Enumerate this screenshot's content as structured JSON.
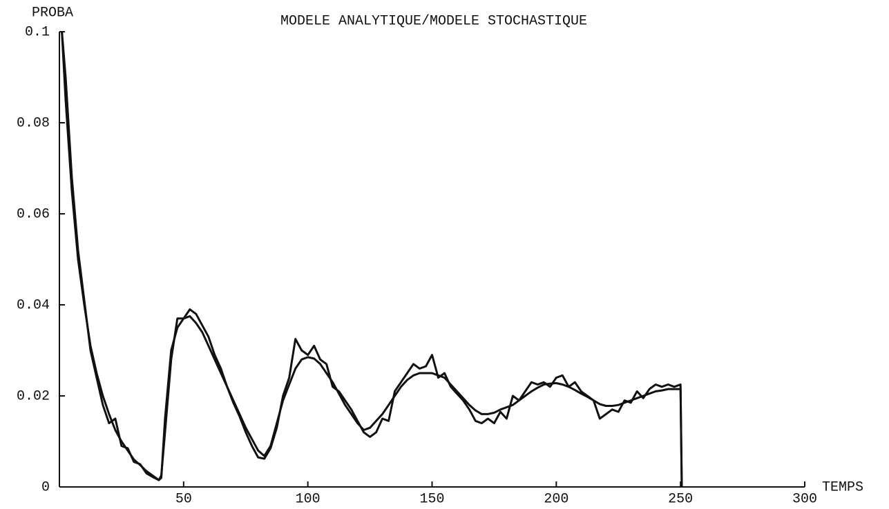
{
  "chart_data": {
    "type": "line",
    "title": "MODELE ANALYTIQUE/MODELE STOCHASTIQUE",
    "y_label": "PROBA",
    "x_label": "TEMPS",
    "xlim": [
      0,
      300
    ],
    "ylim": [
      0,
      0.1
    ],
    "xticks": [
      50,
      100,
      150,
      200,
      250,
      300
    ],
    "yticks": [
      0,
      0.02,
      0.04,
      0.06,
      0.08,
      0.1
    ],
    "x": [
      1,
      2.5,
      5,
      7.5,
      10,
      12.5,
      15,
      17.5,
      20,
      22.5,
      25,
      27.5,
      30,
      32.5,
      35,
      37.5,
      40,
      41,
      42.5,
      45,
      47.5,
      50,
      52.5,
      55,
      57.5,
      60,
      62.5,
      65,
      67.5,
      70,
      72.5,
      75,
      77.5,
      80,
      82.5,
      85,
      87.5,
      90,
      92.5,
      95,
      97.5,
      100,
      102.5,
      105,
      107.5,
      110,
      112.5,
      115,
      117.5,
      120,
      122.5,
      125,
      127.5,
      130,
      132.5,
      135,
      137.5,
      140,
      142.5,
      145,
      147.5,
      150,
      152.5,
      155,
      157.5,
      160,
      162.5,
      165,
      167.5,
      170,
      172.5,
      175,
      177.5,
      180,
      182.5,
      185,
      187.5,
      190,
      192.5,
      195,
      197.5,
      200,
      202.5,
      205,
      207.5,
      210,
      212.5,
      215,
      217.5,
      220,
      222.5,
      225,
      227.5,
      230,
      232.5,
      235,
      237.5,
      240,
      242.5,
      245,
      247.5,
      250,
      250.5
    ],
    "series": [
      {
        "color": "#111111",
        "values": [
          0.1,
          0.085,
          0.065,
          0.05,
          0.04,
          0.031,
          0.025,
          0.02,
          0.016,
          0.0125,
          0.01,
          0.008,
          0.006,
          0.0048,
          0.0035,
          0.0025,
          0.0015,
          0.002,
          0.015,
          0.03,
          0.035,
          0.037,
          0.0375,
          0.036,
          0.034,
          0.031,
          0.028,
          0.025,
          0.022,
          0.019,
          0.016,
          0.013,
          0.0105,
          0.008,
          0.0068,
          0.009,
          0.014,
          0.019,
          0.0225,
          0.026,
          0.028,
          0.0285,
          0.0282,
          0.027,
          0.025,
          0.023,
          0.0205,
          0.018,
          0.016,
          0.014,
          0.0125,
          0.013,
          0.0145,
          0.016,
          0.018,
          0.02,
          0.022,
          0.0235,
          0.0245,
          0.025,
          0.025,
          0.025,
          0.0245,
          0.024,
          0.0225,
          0.021,
          0.0195,
          0.018,
          0.0168,
          0.016,
          0.016,
          0.0163,
          0.017,
          0.0175,
          0.018,
          0.019,
          0.02,
          0.021,
          0.0218,
          0.0225,
          0.0227,
          0.0228,
          0.0225,
          0.022,
          0.0213,
          0.0205,
          0.0198,
          0.019,
          0.0182,
          0.0178,
          0.0178,
          0.018,
          0.0185,
          0.019,
          0.0195,
          0.02,
          0.0205,
          0.021,
          0.0212,
          0.0215,
          0.0215,
          0.0215,
          0
        ]
      },
      {
        "color": "#111111",
        "values": [
          0.1,
          0.09,
          0.068,
          0.052,
          0.041,
          0.03,
          0.024,
          0.018,
          0.014,
          0.015,
          0.009,
          0.0085,
          0.0055,
          0.005,
          0.003,
          0.0022,
          0.0015,
          0.0025,
          0.012,
          0.028,
          0.037,
          0.037,
          0.039,
          0.038,
          0.0355,
          0.033,
          0.029,
          0.026,
          0.022,
          0.0185,
          0.0155,
          0.012,
          0.009,
          0.0065,
          0.0062,
          0.0085,
          0.013,
          0.02,
          0.024,
          0.0325,
          0.03,
          0.029,
          0.031,
          0.028,
          0.027,
          0.022,
          0.021,
          0.019,
          0.017,
          0.0145,
          0.012,
          0.011,
          0.012,
          0.015,
          0.0145,
          0.021,
          0.023,
          0.025,
          0.027,
          0.026,
          0.0265,
          0.029,
          0.024,
          0.025,
          0.022,
          0.0205,
          0.019,
          0.017,
          0.0145,
          0.014,
          0.015,
          0.014,
          0.0165,
          0.015,
          0.02,
          0.019,
          0.021,
          0.023,
          0.0225,
          0.023,
          0.022,
          0.024,
          0.0245,
          0.022,
          0.023,
          0.021,
          0.02,
          0.019,
          0.015,
          0.016,
          0.017,
          0.0165,
          0.019,
          0.0185,
          0.021,
          0.0195,
          0.0215,
          0.0225,
          0.022,
          0.0225,
          0.022,
          0.0225,
          0
        ]
      }
    ]
  }
}
